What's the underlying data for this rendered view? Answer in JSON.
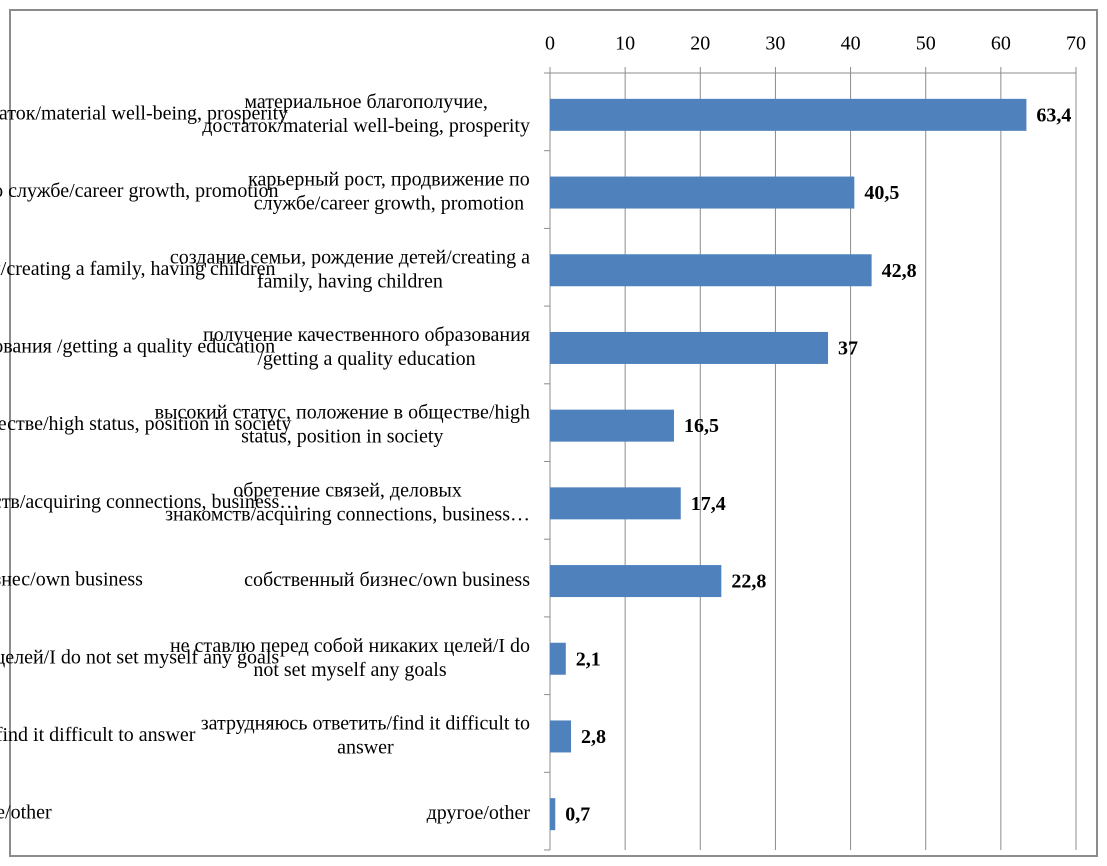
{
  "chart_data": {
    "type": "hbar",
    "categories": [
      "материальное благополучие,\nдостаток/material well-being, prosperity",
      "карьерный рост, продвижение по\nслужбе/career growth, promotion",
      "создание семьи, рождение детей/creating a\nfamily, having children",
      "получение качественного образования\n/getting a quality education",
      "высокий статус, положение в обществе/high\nstatus, position in society",
      "обретение связей, деловых\nзнакомств/acquiring connections, business…",
      "собственный бизнес/own business",
      "не ставлю  перед собой никаких целей/I do\nnot set myself any goals",
      "затрудняюсь ответить/find it difficult to\nanswer",
      "другое/other"
    ],
    "values": [
      63.4,
      40.5,
      42.8,
      37,
      16.5,
      17.4,
      22.8,
      2.1,
      2.8,
      0.7
    ],
    "value_labels": [
      "63,4",
      "40,5",
      "42,8",
      "37",
      "16,5",
      "17,4",
      "22,8",
      "2,1",
      "2,8",
      "0,7"
    ],
    "color": "#4f81bd",
    "xlim": [
      0,
      70
    ],
    "xticks": [
      0,
      10,
      20,
      30,
      40,
      50,
      60,
      70
    ],
    "grid": true
  }
}
